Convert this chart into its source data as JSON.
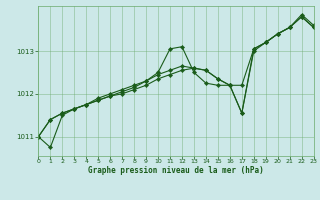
{
  "title": "Graphe pression niveau de la mer (hPa)",
  "bg_color": "#cce8e8",
  "grid_color": "#6aaa6a",
  "line_color": "#1a5c1a",
  "xlim": [
    0,
    23
  ],
  "ylim": [
    1010.55,
    1014.05
  ],
  "yticks": [
    1011,
    1012,
    1013
  ],
  "xticks": [
    0,
    1,
    2,
    3,
    4,
    5,
    6,
    7,
    8,
    9,
    10,
    11,
    12,
    13,
    14,
    15,
    16,
    17,
    18,
    19,
    20,
    21,
    22,
    23
  ],
  "series1": {
    "x": [
      0,
      1,
      2,
      3,
      4,
      5,
      6,
      7,
      8,
      9,
      10,
      11,
      12,
      13,
      14,
      15,
      16,
      17,
      18,
      19,
      20,
      21,
      22,
      23
    ],
    "y": [
      1011.0,
      1010.75,
      1011.5,
      1011.65,
      1011.75,
      1011.85,
      1011.95,
      1012.05,
      1012.15,
      1012.3,
      1012.5,
      1013.05,
      1013.1,
      1012.5,
      1012.25,
      1012.2,
      1012.2,
      1012.2,
      1013.05,
      1013.2,
      1013.4,
      1013.55,
      1013.85,
      1013.6
    ]
  },
  "series2": {
    "x": [
      0,
      1,
      2,
      3,
      4,
      5,
      6,
      7,
      8,
      9,
      10,
      11,
      12,
      13,
      14,
      15,
      16,
      17,
      18,
      19,
      20,
      21,
      22,
      23
    ],
    "y": [
      1011.0,
      1011.4,
      1011.55,
      1011.65,
      1011.75,
      1011.85,
      1011.95,
      1012.0,
      1012.1,
      1012.2,
      1012.35,
      1012.45,
      1012.55,
      1012.6,
      1012.55,
      1012.35,
      1012.2,
      1011.55,
      1013.05,
      1013.2,
      1013.4,
      1013.55,
      1013.8,
      1013.55
    ]
  },
  "series3": {
    "x": [
      0,
      1,
      2,
      3,
      4,
      5,
      6,
      7,
      8,
      9,
      10,
      11,
      12,
      13,
      14,
      15,
      16,
      17,
      18,
      19,
      20,
      21,
      22,
      23
    ],
    "y": [
      1011.0,
      1011.4,
      1011.55,
      1011.65,
      1011.75,
      1011.9,
      1012.0,
      1012.1,
      1012.2,
      1012.3,
      1012.45,
      1012.55,
      1012.65,
      1012.6,
      1012.55,
      1012.35,
      1012.2,
      1011.55,
      1013.0,
      1013.2,
      1013.4,
      1013.55,
      1013.8,
      1013.55
    ]
  }
}
